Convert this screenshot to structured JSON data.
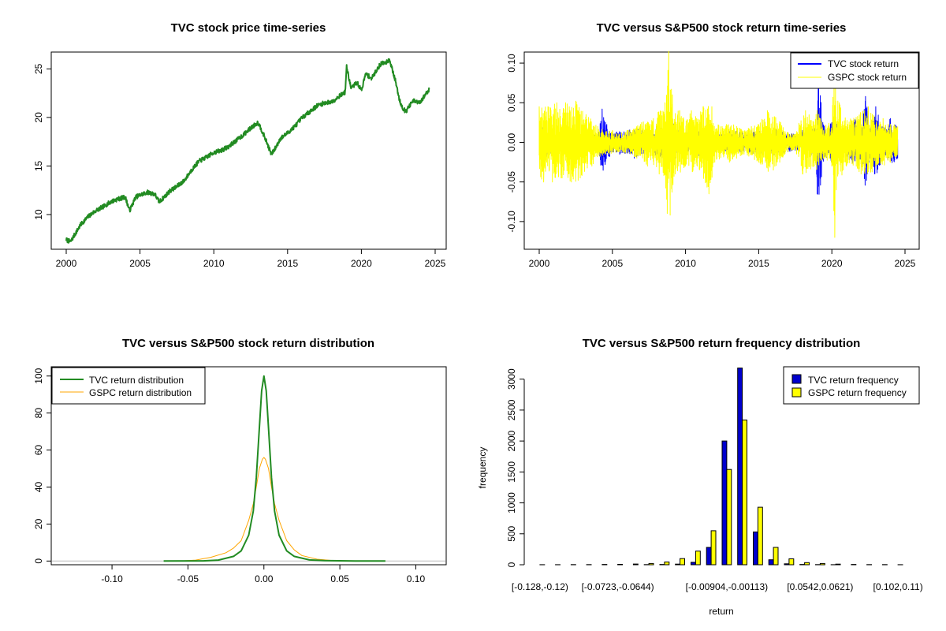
{
  "colors": {
    "tvc_price": "#228B22",
    "tvc_return": "#0000FF",
    "gspc_return": "#FFFF00",
    "tvc_density": "#228B22",
    "gspc_density": "#FFA500",
    "bar_tvc": "#0000CD",
    "bar_gspc": "#FFFF00",
    "zero_line": "#BEBEBE"
  },
  "chart_data": [
    {
      "type": "line",
      "title": "TVC stock price time-series",
      "xlim": [
        2000,
        2025
      ],
      "ylim": [
        7,
        26
      ],
      "x_ticks": [
        "2000",
        "2005",
        "2010",
        "2015",
        "2020",
        "2025"
      ],
      "y_ticks": [
        "10",
        "15",
        "20",
        "25"
      ],
      "series": [
        {
          "x": [
            2000.0,
            2000.3,
            2000.6,
            2001.0,
            2001.5,
            2002.0,
            2002.5,
            2003.0,
            2003.5,
            2004.0,
            2004.3,
            2004.7,
            2005.0,
            2005.5,
            2006.0,
            2006.3,
            2006.7,
            2007.0,
            2007.5,
            2008.0,
            2008.5,
            2009.0,
            2009.5,
            2010.0,
            2010.5,
            2011.0,
            2011.5,
            2012.0,
            2012.5,
            2013.0,
            2013.3,
            2013.6,
            2013.9,
            2014.2,
            2014.5,
            2015.0,
            2015.5,
            2016.0,
            2016.5,
            2017.0,
            2017.5,
            2018.0,
            2018.5,
            2018.9,
            2019.0,
            2019.3,
            2019.7,
            2020.0,
            2020.3,
            2020.7,
            2021.0,
            2021.3,
            2021.7,
            2021.9,
            2022.1,
            2022.3,
            2022.6,
            2022.8,
            2023.0,
            2023.5,
            2024.0,
            2024.3,
            2024.6
          ],
          "y": [
            7.4,
            7.2,
            8.0,
            9.0,
            9.8,
            10.4,
            10.8,
            11.3,
            11.6,
            11.8,
            10.4,
            11.8,
            12.0,
            12.3,
            12.1,
            11.3,
            11.9,
            12.4,
            12.9,
            13.5,
            14.6,
            15.5,
            15.9,
            16.4,
            16.6,
            17.0,
            17.6,
            18.2,
            18.9,
            19.5,
            18.5,
            17.4,
            16.2,
            16.9,
            17.8,
            18.4,
            19.1,
            20.0,
            20.6,
            21.2,
            21.5,
            21.6,
            22.2,
            22.6,
            25.2,
            23.0,
            23.6,
            22.8,
            24.5,
            24.0,
            24.8,
            25.5,
            25.7,
            26.0,
            24.9,
            23.8,
            21.7,
            21.0,
            20.6,
            21.7,
            21.5,
            22.3,
            22.9
          ]
        }
      ]
    },
    {
      "type": "line",
      "title": "TVC versus S&P500 stock return time-series",
      "xlim": [
        2000,
        2025
      ],
      "ylim": [
        -0.13,
        0.11
      ],
      "x_ticks": [
        "2000",
        "2005",
        "2010",
        "2015",
        "2020",
        "2025"
      ],
      "y_ticks": [
        "-0.10",
        "-0.05",
        "0.00",
        "0.05",
        "0.10"
      ],
      "legend_position": "top-right",
      "series": [
        {
          "name": "TVC stock return",
          "x": [
            2000.0,
            2000.5,
            2001.0,
            2001.5,
            2002.0,
            2002.5,
            2003.0,
            2003.5,
            2004.0,
            2004.3,
            2004.5,
            2005.0,
            2005.5,
            2006.0,
            2006.5,
            2007.0,
            2007.5,
            2008.0,
            2008.5,
            2008.9,
            2009.2,
            2009.5,
            2010.0,
            2010.5,
            2011.0,
            2011.5,
            2012.0,
            2012.5,
            2013.0,
            2013.5,
            2014.0,
            2014.5,
            2015.0,
            2015.5,
            2016.0,
            2016.5,
            2017.0,
            2017.5,
            2018.0,
            2018.5,
            2018.9,
            2019.0,
            2019.1,
            2019.5,
            2020.0,
            2020.2,
            2020.5,
            2021.0,
            2021.5,
            2022.0,
            2022.3,
            2022.6,
            2023.0,
            2023.5,
            2024.0,
            2024.5
          ],
          "y": [
            0.02,
            -0.018,
            0.015,
            -0.012,
            0.012,
            -0.01,
            0.01,
            -0.012,
            0.008,
            0.042,
            -0.028,
            0.012,
            -0.015,
            0.014,
            -0.02,
            0.015,
            -0.012,
            0.02,
            -0.022,
            0.03,
            -0.025,
            0.015,
            -0.012,
            0.012,
            -0.02,
            0.015,
            -0.012,
            0.01,
            -0.015,
            0.014,
            -0.012,
            0.015,
            -0.015,
            0.015,
            -0.018,
            0.015,
            0.012,
            -0.01,
            0.015,
            -0.015,
            0.02,
            -0.065,
            0.075,
            -0.018,
            0.025,
            -0.03,
            0.02,
            -0.018,
            0.03,
            -0.025,
            0.058,
            -0.02,
            0.045,
            -0.02,
            0.03,
            -0.02
          ]
        },
        {
          "name": "GSPC stock return",
          "x": [
            2000.0,
            2000.3,
            2000.6,
            2000.9,
            2001.2,
            2001.5,
            2001.8,
            2002.2,
            2002.5,
            2002.8,
            2003.2,
            2003.6,
            2004.0,
            2004.5,
            2005.0,
            2005.5,
            2006.0,
            2006.5,
            2007.0,
            2007.4,
            2007.8,
            2008.2,
            2008.6,
            2008.75,
            2008.85,
            2008.95,
            2009.1,
            2009.3,
            2009.6,
            2010.0,
            2010.4,
            2010.8,
            2011.2,
            2011.6,
            2011.8,
            2012.0,
            2012.5,
            2013.0,
            2013.5,
            2014.0,
            2014.5,
            2015.0,
            2015.6,
            2016.0,
            2016.5,
            2017.0,
            2017.5,
            2018.0,
            2018.2,
            2018.8,
            2019.0,
            2019.5,
            2020.0,
            2020.15,
            2020.2,
            2020.25,
            2020.3,
            2020.5,
            2021.0,
            2021.5,
            2022.0,
            2022.5,
            2023.0,
            2023.5,
            2024.0,
            2024.5
          ],
          "y": [
            0.045,
            -0.05,
            0.045,
            -0.05,
            0.05,
            -0.045,
            0.05,
            -0.05,
            0.052,
            -0.045,
            0.035,
            -0.03,
            0.02,
            -0.015,
            0.015,
            -0.012,
            0.015,
            -0.018,
            0.025,
            -0.03,
            0.03,
            -0.04,
            0.05,
            -0.09,
            0.115,
            -0.092,
            0.06,
            -0.04,
            0.04,
            -0.03,
            0.04,
            -0.03,
            0.045,
            -0.065,
            0.045,
            -0.025,
            0.02,
            -0.025,
            0.02,
            -0.015,
            0.02,
            -0.025,
            0.04,
            -0.035,
            0.025,
            -0.012,
            0.01,
            -0.04,
            0.04,
            -0.03,
            0.04,
            -0.02,
            -0.03,
            0.095,
            -0.12,
            0.07,
            -0.06,
            0.05,
            -0.03,
            0.03,
            -0.04,
            0.045,
            -0.03,
            0.03,
            -0.025,
            0.02
          ]
        }
      ]
    },
    {
      "type": "line",
      "title": "TVC versus S&P500 stock return distribution",
      "xlim": [
        -0.14,
        0.12
      ],
      "ylim": [
        -2,
        105
      ],
      "x_ticks": [
        "-0.10",
        "-0.05",
        "0.00",
        "0.05",
        "0.10"
      ],
      "y_ticks": [
        "0",
        "20",
        "40",
        "60",
        "80",
        "100"
      ],
      "legend_position": "top-left",
      "series": [
        {
          "name": "TVC return distribution",
          "x": [
            -0.066,
            -0.04,
            -0.03,
            -0.02,
            -0.015,
            -0.01,
            -0.007,
            -0.005,
            -0.003,
            -0.0015,
            0.0,
            0.0015,
            0.003,
            0.005,
            0.007,
            0.01,
            0.015,
            0.02,
            0.03,
            0.04,
            0.06,
            0.08
          ],
          "y": [
            0.0,
            0.1,
            0.5,
            2.5,
            5.5,
            14.0,
            27.0,
            45.0,
            72.0,
            92.0,
            100.0,
            92.0,
            72.0,
            45.0,
            27.0,
            14.0,
            5.5,
            2.5,
            0.6,
            0.2,
            0.05,
            0.0
          ]
        },
        {
          "name": "GSPC return distribution",
          "x": [
            -0.055,
            -0.045,
            -0.035,
            -0.025,
            -0.02,
            -0.015,
            -0.01,
            -0.007,
            -0.005,
            -0.003,
            -0.001,
            0.0,
            0.001,
            0.003,
            0.005,
            0.007,
            0.01,
            0.015,
            0.02,
            0.025,
            0.035,
            0.045,
            0.055
          ],
          "y": [
            0.0,
            0.5,
            2.0,
            4.5,
            7.0,
            11.0,
            22.0,
            31.0,
            40.0,
            50.0,
            55.0,
            56.0,
            55.0,
            50.0,
            40.0,
            31.0,
            22.0,
            11.0,
            6.0,
            3.0,
            1.0,
            0.3,
            0.0
          ]
        }
      ]
    },
    {
      "type": "bar",
      "title": "TVC versus S&P500 return frequency distribution",
      "xlabel": "return",
      "ylabel": "frequency",
      "ylim": [
        0,
        3200
      ],
      "y_ticks": [
        "0",
        "500",
        "1000",
        "1500",
        "2000",
        "2500",
        "3000"
      ],
      "legend_position": "top-right",
      "categories": [
        "[-0.128,-0.12)",
        "",
        "",
        "",
        "",
        "[-0.0723,-0.0644)",
        "",
        "",
        "",
        "",
        "",
        "",
        "[-0.00904,-0.00113)",
        "",
        "",
        "",
        "",
        "",
        "[0.0542,0.0621)",
        "",
        "",
        "",
        "",
        "[0.102,0.11)"
      ],
      "x_tick_labels": [
        "[-0.128,-0.12)",
        "[-0.0723,-0.0644)",
        "[-0.00904,-0.00113)",
        "[0.0542,0.0621)",
        "[0.102,0.11)"
      ],
      "series": [
        {
          "name": "TVC return frequency",
          "values": [
            0,
            0,
            0,
            0,
            0,
            0,
            0,
            2,
            5,
            10,
            40,
            280,
            2000,
            3180,
            530,
            80,
            15,
            5,
            2,
            1,
            0,
            0,
            0,
            0
          ]
        },
        {
          "name": "GSPC return frequency",
          "values": [
            1,
            1,
            2,
            3,
            5,
            7,
            12,
            20,
            45,
            100,
            220,
            550,
            1540,
            2340,
            930,
            280,
            95,
            35,
            20,
            10,
            5,
            3,
            2,
            1
          ]
        }
      ]
    }
  ]
}
